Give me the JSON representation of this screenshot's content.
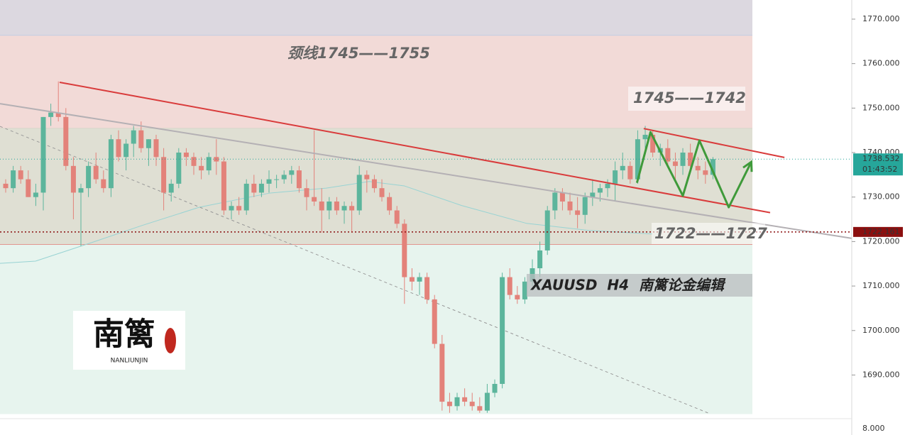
{
  "chart_data": {
    "type": "candlestick",
    "ylim": [
      1681.3,
      1774.3
    ],
    "xlim": [
      -0.755,
      112.45
    ],
    "yticks": [
      {
        "value": 1690,
        "label": "1690.000"
      },
      {
        "value": 1700,
        "label": "1700.000"
      },
      {
        "value": 1710,
        "label": "1710.000"
      },
      {
        "value": 1720,
        "label": "1720.000"
      },
      {
        "value": 1730,
        "label": "1730.000"
      },
      {
        "value": 1740,
        "label": "1740.000"
      },
      {
        "value": 1750,
        "label": "1750.000"
      },
      {
        "value": 1760,
        "label": "1760.000"
      },
      {
        "value": 1770,
        "label": "1770.000"
      }
    ],
    "up_color": "#5cb59c",
    "down_color": "#e3827a",
    "ohlc": [
      [
        1733,
        1734,
        1731,
        1732
      ],
      [
        1732,
        1737,
        1731,
        1736
      ],
      [
        1736,
        1737,
        1733,
        1734
      ],
      [
        1734,
        1736,
        1730,
        1730
      ],
      [
        1730,
        1733,
        1728,
        1731
      ],
      [
        1731,
        1748,
        1727,
        1748
      ],
      [
        1748,
        1751,
        1746,
        1749
      ],
      [
        1749,
        1756,
        1747,
        1748
      ],
      [
        1748,
        1750,
        1736,
        1737
      ],
      [
        1737,
        1739,
        1725,
        1731
      ],
      [
        1731,
        1733,
        1719,
        1732
      ],
      [
        1732,
        1738,
        1730,
        1737
      ],
      [
        1737,
        1740,
        1733,
        1734
      ],
      [
        1734,
        1736,
        1731,
        1732
      ],
      [
        1732,
        1744,
        1730,
        1743
      ],
      [
        1743,
        1745,
        1738,
        1739
      ],
      [
        1739,
        1743,
        1736,
        1742
      ],
      [
        1742,
        1746,
        1739,
        1745
      ],
      [
        1745,
        1747,
        1740,
        1741
      ],
      [
        1741,
        1743,
        1737,
        1743
      ],
      [
        1743,
        1744,
        1737,
        1739
      ],
      [
        1739,
        1741,
        1727,
        1731
      ],
      [
        1731,
        1734,
        1729,
        1733
      ],
      [
        1733,
        1741,
        1732,
        1740
      ],
      [
        1740,
        1741,
        1737,
        1739
      ],
      [
        1739,
        1740,
        1735,
        1737
      ],
      [
        1737,
        1739,
        1734,
        1736
      ],
      [
        1736,
        1740,
        1735,
        1739
      ],
      [
        1739,
        1743,
        1735,
        1738
      ],
      [
        1738,
        1739,
        1726,
        1727
      ],
      [
        1727,
        1729,
        1725,
        1728
      ],
      [
        1728,
        1730,
        1726,
        1727
      ],
      [
        1727,
        1734,
        1726,
        1733
      ],
      [
        1733,
        1735,
        1730,
        1731
      ],
      [
        1731,
        1734,
        1730,
        1733
      ],
      [
        1733,
        1736,
        1731,
        1734
      ],
      [
        1734,
        1735,
        1732,
        1734
      ],
      [
        1734,
        1736,
        1733,
        1735
      ],
      [
        1735,
        1737,
        1733,
        1736
      ],
      [
        1736,
        1737,
        1731,
        1732
      ],
      [
        1732,
        1734,
        1727,
        1730
      ],
      [
        1730,
        1745,
        1728,
        1729
      ],
      [
        1729,
        1732,
        1722,
        1727
      ],
      [
        1727,
        1730,
        1725,
        1729
      ],
      [
        1729,
        1730,
        1726,
        1727
      ],
      [
        1727,
        1729,
        1724,
        1728
      ],
      [
        1728,
        1729,
        1722,
        1727
      ],
      [
        1727,
        1737,
        1726,
        1735
      ],
      [
        1735,
        1736,
        1731,
        1734
      ],
      [
        1734,
        1735,
        1731,
        1732
      ],
      [
        1732,
        1734,
        1729,
        1730
      ],
      [
        1730,
        1731,
        1726,
        1727
      ],
      [
        1727,
        1728,
        1723,
        1724
      ],
      [
        1724,
        1725,
        1706,
        1712
      ],
      [
        1712,
        1714,
        1709,
        1711
      ],
      [
        1711,
        1713,
        1708,
        1712
      ],
      [
        1712,
        1713,
        1706,
        1707
      ],
      [
        1707,
        1708,
        1696,
        1697
      ],
      [
        1697,
        1699,
        1682,
        1684
      ],
      [
        1684,
        1686,
        1681.5,
        1683
      ],
      [
        1683,
        1686,
        1682,
        1685
      ],
      [
        1685,
        1687,
        1683,
        1684
      ],
      [
        1684,
        1686,
        1682,
        1683
      ],
      [
        1683,
        1685,
        1681.5,
        1682
      ],
      [
        1682,
        1688,
        1681.5,
        1686
      ],
      [
        1686,
        1689,
        1685,
        1688
      ],
      [
        1688,
        1713,
        1687,
        1712
      ],
      [
        1712,
        1714,
        1707,
        1708
      ],
      [
        1708,
        1710,
        1706,
        1707
      ],
      [
        1707,
        1712,
        1706,
        1711
      ],
      [
        1711,
        1716,
        1710,
        1714
      ],
      [
        1714,
        1720,
        1712,
        1718
      ],
      [
        1718,
        1728,
        1717,
        1727
      ],
      [
        1727,
        1732,
        1725,
        1731
      ],
      [
        1731,
        1732,
        1727,
        1729
      ],
      [
        1729,
        1731,
        1726,
        1727
      ],
      [
        1727,
        1730,
        1723,
        1726
      ],
      [
        1726,
        1731,
        1724,
        1730
      ],
      [
        1730,
        1734,
        1728,
        1731
      ],
      [
        1731,
        1733,
        1729,
        1732
      ],
      [
        1732,
        1734,
        1730,
        1733
      ],
      [
        1733,
        1738,
        1729,
        1736
      ],
      [
        1736,
        1740,
        1734,
        1737
      ],
      [
        1737,
        1738,
        1733,
        1734
      ],
      [
        1734,
        1745,
        1733,
        1743
      ],
      [
        1743,
        1746,
        1740,
        1744
      ],
      [
        1744,
        1745,
        1739,
        1740
      ],
      [
        1740,
        1742,
        1737,
        1741
      ],
      [
        1741,
        1743,
        1737,
        1738
      ],
      [
        1738,
        1740,
        1734,
        1737
      ],
      [
        1737,
        1741,
        1735,
        1740
      ],
      [
        1740,
        1742,
        1736,
        1737
      ],
      [
        1737,
        1739,
        1734,
        1736
      ],
      [
        1736,
        1738,
        1733,
        1735
      ],
      [
        1735,
        1739,
        1734,
        1738.532
      ]
    ],
    "zones": [
      {
        "from": 1766.3,
        "to": 1774.3,
        "color": "#dcd8e0",
        "border": "#a9c4e6"
      },
      {
        "from": 1745.4,
        "to": 1766.3,
        "color": "#f2dad7",
        "border": "#c9d3c0"
      },
      {
        "from": 1719.3,
        "to": 1745.4,
        "color": "#dfdfd3",
        "border": "#e0504a"
      },
      {
        "from": 1681.3,
        "to": 1719.3,
        "color": "#e7f4ee",
        "border": "#e7f4ee"
      }
    ],
    "lines": [
      {
        "color": "#98d3d3",
        "dash": false,
        "arrow": false,
        "width": 1,
        "x": [
          -0.755,
          3.96,
          10.6,
          18.1,
          25.7,
          35.1,
          42.6,
          48.3,
          53.0,
          60.6,
          69.2,
          77.5,
          86.0
        ],
        "y": [
          1715.1,
          1715.6,
          1719.3,
          1723.6,
          1727.7,
          1730.9,
          1732.0,
          1733.5,
          1732.5,
          1728.1,
          1724.1,
          1722.5,
          1721.7
        ]
      },
      {
        "color": "#b4b0b4",
        "dash": false,
        "arrow": false,
        "width": 2,
        "x": [
          -0.755,
          112.9
        ],
        "y": [
          1751.0,
          1720.6
        ]
      },
      {
        "color": "#999999",
        "dash": true,
        "arrow": false,
        "width": 1,
        "x": [
          -0.755,
          93.6
        ],
        "y": [
          1745.9,
          1681.3
        ]
      },
      {
        "color": "#d93b3b",
        "dash": false,
        "arrow": false,
        "width": 2,
        "x": [
          7.17,
          101.6
        ],
        "y": [
          1755.8,
          1726.5
        ]
      },
      {
        "color": "#d93b3b",
        "dash": false,
        "arrow": false,
        "width": 2,
        "x": [
          84.8,
          103.5
        ],
        "y": [
          1745.4,
          1738.9
        ]
      },
      {
        "color": "#3f9a3a",
        "dash": false,
        "arrow": true,
        "width": 3,
        "x": [
          83.9,
          85.7,
          90.0,
          92.2,
          96.1,
          99.1
        ],
        "y": [
          1733.2,
          1744.6,
          1730.3,
          1742.7,
          1727.7,
          1737.9
        ]
      }
    ],
    "last_price": 1738.532,
    "countdown": "01:43:52",
    "last_color": "#26a69a",
    "level_price": 1722.161,
    "level_color": "#8b0f0f",
    "lower_pane_ticks": [
      {
        "value": 8,
        "label": "8.000"
      }
    ],
    "annotations": [
      "颈线1745——1755",
      "1745——1742",
      "1722——1727",
      "XAUUSD  H4  南篱论金编辑"
    ],
    "logo": {
      "title": "南篱",
      "subtitle": "NANLIUNJIN"
    }
  }
}
